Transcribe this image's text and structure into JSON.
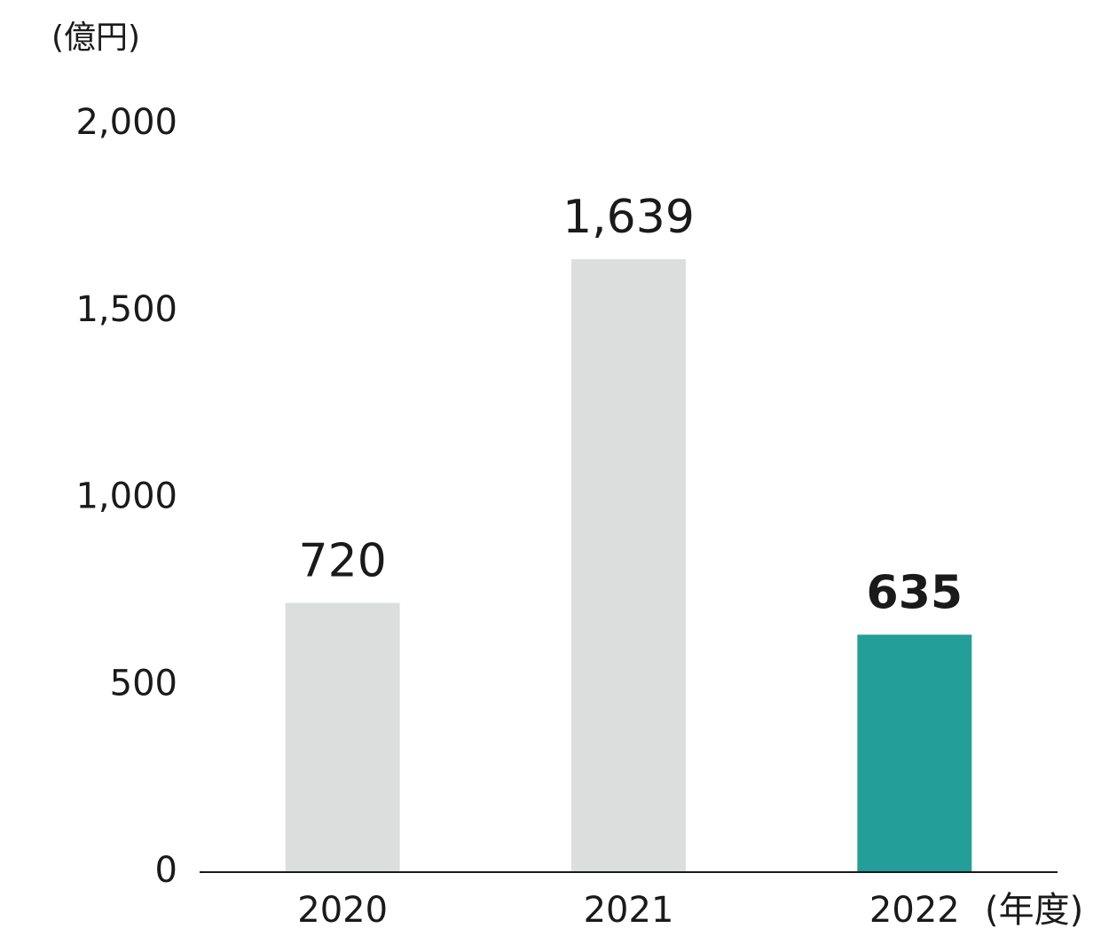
{
  "chart_data": {
    "type": "bar",
    "y_label": "(億円)",
    "x_label": "(年度)",
    "categories": [
      "2020",
      "2021",
      "2022"
    ],
    "values": [
      720,
      1639,
      635
    ],
    "value_labels": [
      "720",
      "1,639",
      "635"
    ],
    "colors": [
      "#dcdddd",
      "#dcdddd",
      "#239e98"
    ],
    "ylim": [
      0,
      2000
    ],
    "yticks": [
      0,
      500,
      {
        "value": 1000,
        "label": "1,000"
      },
      {
        "value": 1500,
        "label": "1,500"
      },
      {
        "value": 2000,
        "label": "2,000"
      }
    ],
    "grid": false
  }
}
